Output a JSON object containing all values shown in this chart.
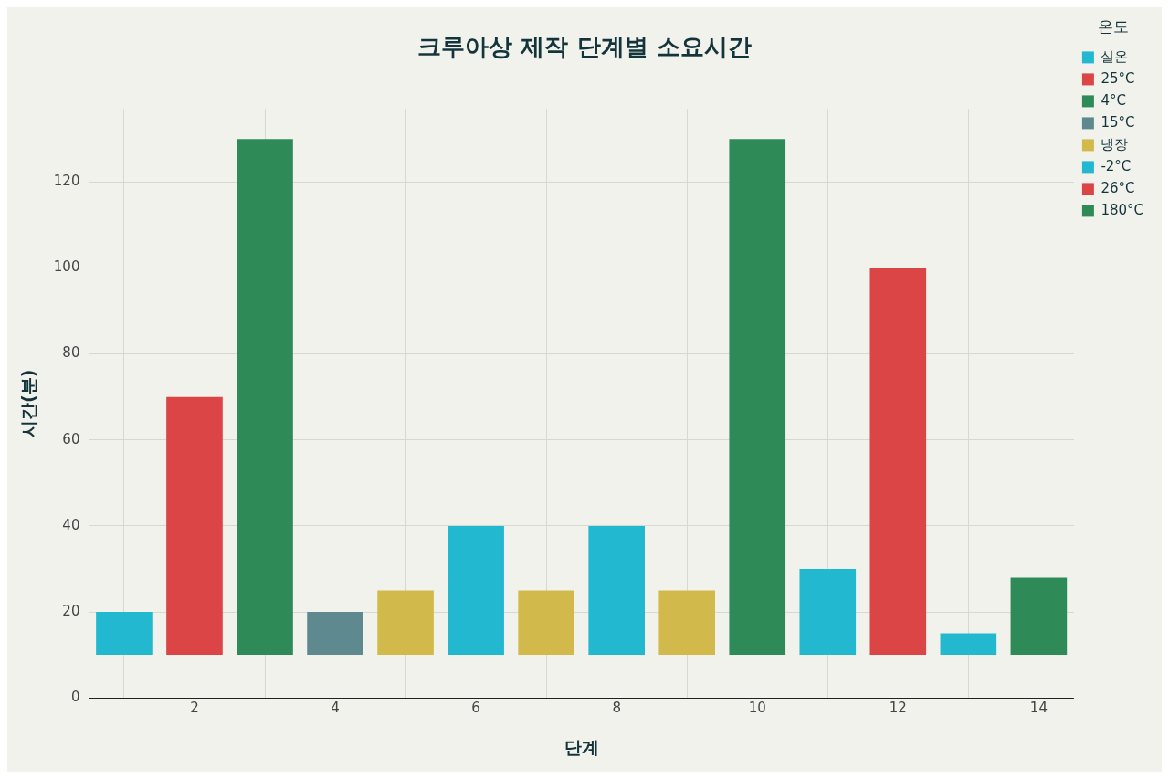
{
  "chart_data": {
    "type": "bar",
    "title": "크루아상 제작 단계별 소요시간",
    "xlabel": "단계",
    "ylabel": "시간(분)",
    "legend_title": "온도",
    "series": [
      {
        "name": "실온",
        "color": "#22b8cf",
        "x": [
          1,
          6,
          8,
          11
        ],
        "values": [
          10,
          30,
          30,
          20
        ],
        "base": [
          10,
          10,
          10,
          10
        ]
      },
      {
        "name": "25°C",
        "color": "#db4545",
        "x": [
          2
        ],
        "values": [
          60
        ],
        "base": [
          10
        ]
      },
      {
        "name": "4°C",
        "color": "#2e8b57",
        "x": [
          3,
          10
        ],
        "values": [
          120,
          120
        ],
        "base": [
          10,
          10
        ]
      },
      {
        "name": "15°C",
        "color": "#5e8a8f",
        "x": [
          4
        ],
        "values": [
          10
        ],
        "base": [
          10
        ]
      },
      {
        "name": "냉장",
        "color": "#d2b94b",
        "x": [
          5,
          7,
          9
        ],
        "values": [
          15,
          15,
          15
        ],
        "base": [
          10,
          10,
          10
        ]
      },
      {
        "name": "-2°C",
        "color": "#22b8cf",
        "x": [
          13
        ],
        "values": [
          5
        ],
        "base": [
          10
        ]
      },
      {
        "name": "26°C",
        "color": "#db4545",
        "x": [
          12
        ],
        "values": [
          90
        ],
        "base": [
          10
        ]
      },
      {
        "name": "180°C",
        "color": "#2e8b57",
        "x": [
          14
        ],
        "values": [
          18
        ],
        "base": [
          10
        ]
      }
    ],
    "xlim": [
      0.5,
      14.5
    ],
    "xticks": [
      2,
      4,
      6,
      8,
      10,
      12,
      14
    ],
    "ylim": [
      0,
      137
    ],
    "yticks": [
      0,
      20,
      40,
      60,
      80,
      100,
      120
    ],
    "grid": true,
    "legend": "top right"
  }
}
